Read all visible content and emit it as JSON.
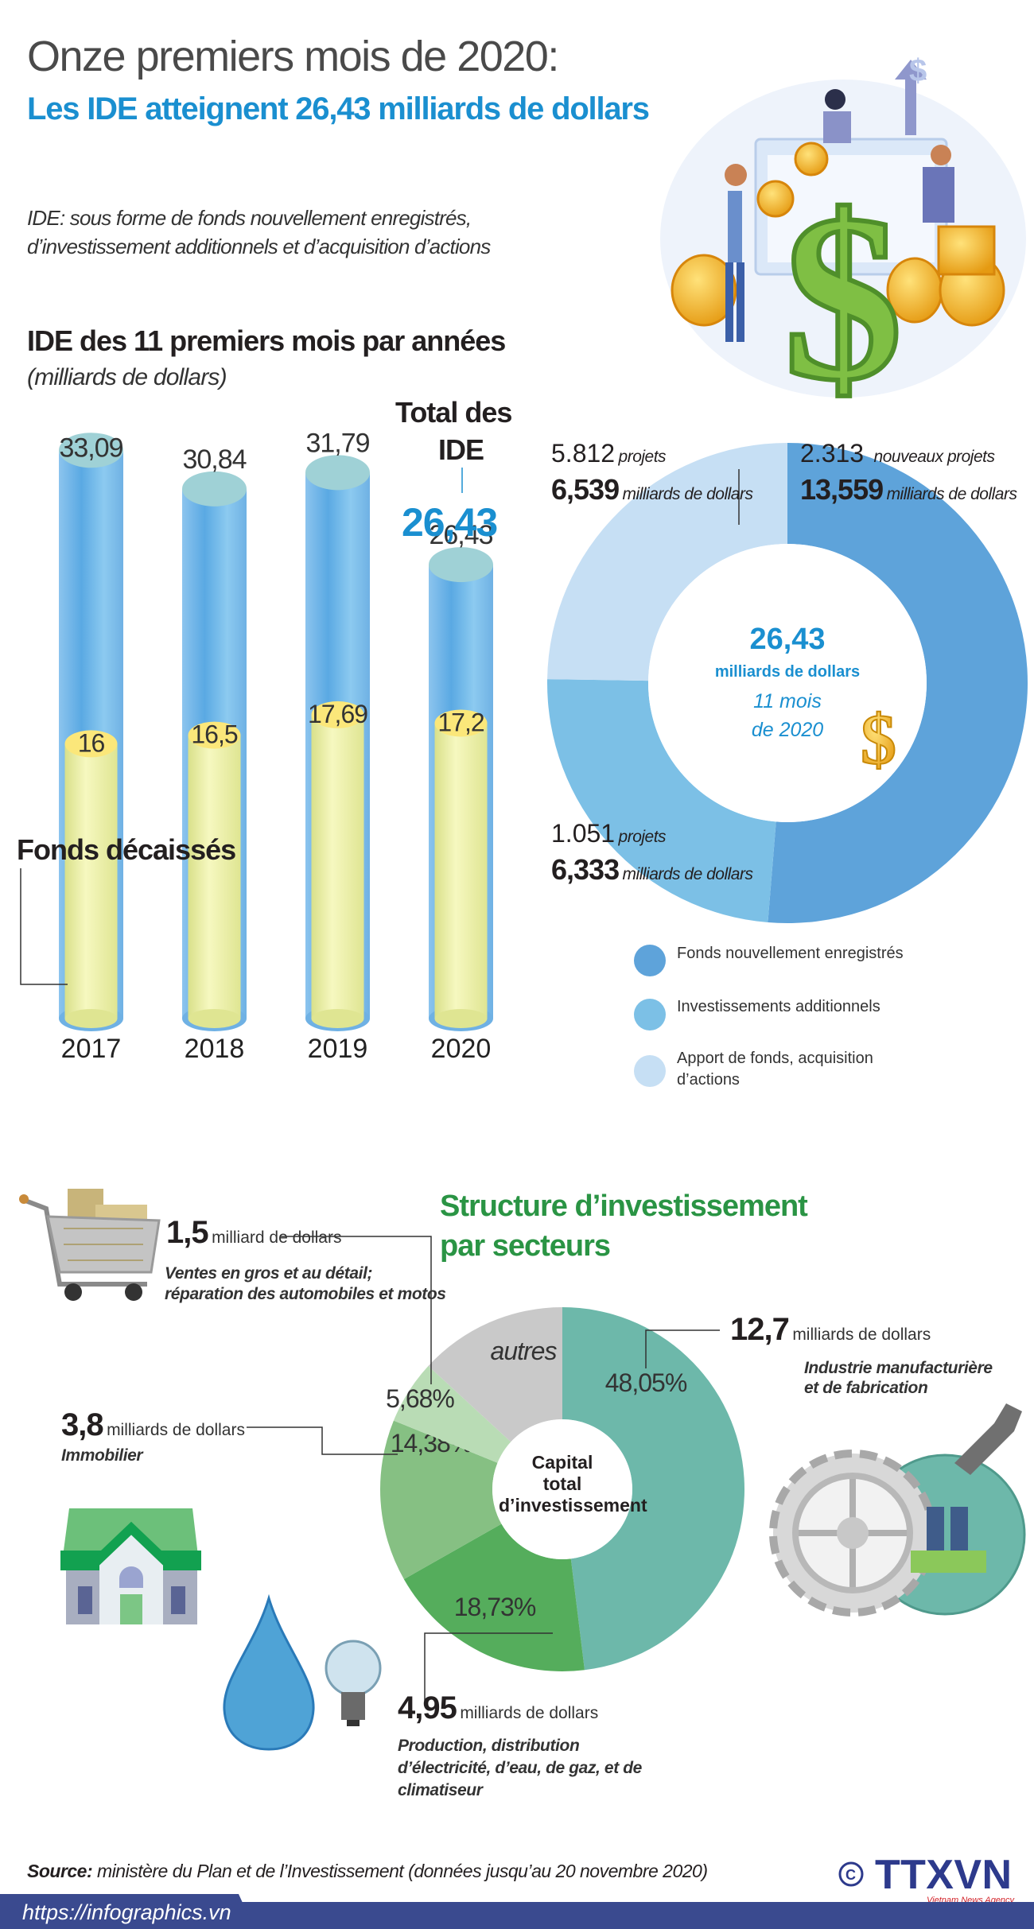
{
  "header": {
    "title": "Onze premiers mois de 2020:",
    "subtitle": "Les IDE atteignent 26,43 milliards de dollars",
    "note_line1": "IDE: sous forme de fonds nouvellement enregistrés,",
    "note_line2": "d’investissement additionnels et d’acquisition d’actions"
  },
  "bar_section": {
    "title": "IDE des 11 premiers mois par années",
    "unit": "(milliards de dollars)",
    "total_label_line1": "Total des",
    "total_label_line2": "IDE",
    "total_value": "26,43",
    "disbursed_label": "Fonds décaissés"
  },
  "donut_ide": {
    "center_value": "26,43",
    "center_unit": "milliards de dollars",
    "center_line3": "11 mois",
    "center_line4": "de 2020",
    "labels": [
      {
        "count": "2.313",
        "count_unit": "nouveaux projets",
        "amount": "13,559",
        "amount_unit": "milliards de dollars"
      },
      {
        "count": "1.051",
        "count_unit": "projets",
        "amount": "6,333",
        "amount_unit": "milliards de dollars"
      },
      {
        "count": "5.812",
        "count_unit": "projets",
        "amount": "6,539",
        "amount_unit": "milliards de dollars"
      }
    ],
    "legend": [
      {
        "label": "Fonds nouvellement enregistrés",
        "color": "#5ea3da"
      },
      {
        "label": "Investissements additionnels",
        "color": "#7cc0e6"
      },
      {
        "label_line1": "Apport de fonds, acquisition",
        "label_line2": "d’actions",
        "color": "#c6dff4"
      }
    ]
  },
  "sectors": {
    "title_line1": "Structure d’investissement",
    "title_line2": "par secteurs",
    "center_line1": "Capital",
    "center_line2": "total",
    "center_line3": "d’investissement",
    "callouts": [
      {
        "value": "12,7",
        "unit": "milliards de dollars",
        "desc_line1": "Industrie manufacturière",
        "desc_line2": "et de fabrication"
      },
      {
        "value": "4,95",
        "unit": "milliards de dollars",
        "desc_line1": "Production, distribution",
        "desc_line2": "d’électricité, d’eau, de gaz, et de",
        "desc_line3": "climatiseur"
      },
      {
        "value": "3,8",
        "unit": "milliards de dollars",
        "desc_line1": "Immobilier"
      },
      {
        "value": "1,5",
        "unit": "milliard de dollars",
        "desc_line1": "Ventes en gros et au détail;",
        "desc_line2": "réparation des automobiles et motos"
      }
    ]
  },
  "footer": {
    "source_label": "Source:",
    "source_text": "ministère du Plan et de l’Investissement (données jusqu’au 20 novembre 2020)",
    "url": "https://infographics.vn",
    "logo_text": "TTXVN",
    "logo_sub": "Vietnam News Agency",
    "copyright": "©"
  },
  "chart_data": [
    {
      "type": "bar",
      "title": "IDE des 11 premiers mois par années",
      "ylabel": "(milliards de dollars)",
      "categories": [
        "2017",
        "2018",
        "2019",
        "2020"
      ],
      "series": [
        {
          "name": "Total des IDE",
          "values": [
            33.09,
            30.84,
            31.79,
            26.43
          ],
          "labels": [
            "33,09",
            "30,84",
            "31,79",
            "26,43"
          ],
          "color": "#6fb4e6"
        },
        {
          "name": "Fonds décaissés",
          "values": [
            16,
            16.5,
            17.69,
            17.2
          ],
          "labels": [
            "16",
            "16,5",
            "17,69",
            "17,2"
          ],
          "color": "#eef2a0"
        }
      ],
      "grid": false
    },
    {
      "type": "pie",
      "variant": "donut",
      "slices": [
        {
          "name": "Fonds nouvellement enregistrés",
          "value": 13.559,
          "projects": 2313,
          "color": "#5ea3da"
        },
        {
          "name": "Investissements additionnels",
          "value": 6.333,
          "projects": 1051,
          "color": "#7cc0e6"
        },
        {
          "name": "Apport de fonds, acquisition d’actions",
          "value": 6.539,
          "projects": 5812,
          "color": "#c6dff4"
        }
      ],
      "total": 26.43,
      "legend": "bottom-right"
    },
    {
      "type": "pie",
      "variant": "donut",
      "slices": [
        {
          "name": "Industrie manufacturière et de fabrication",
          "value": 48.05,
          "label": "48,05%",
          "color": "#6db8aa"
        },
        {
          "name": "Production, distribution d’électricité, d’eau, de gaz, et de climatiseur",
          "value": 18.73,
          "label": "18,73%",
          "color": "#55ad5c"
        },
        {
          "name": "Immobilier",
          "value": 14.38,
          "label": "14,38%",
          "color": "#86c083"
        },
        {
          "name": "Ventes en gros et au détail; réparation des automobiles et motos",
          "value": 5.68,
          "label": "5,68%",
          "color": "#b9dcb5"
        },
        {
          "name": "autres",
          "value": 13.16,
          "label": "autres",
          "color": "#c9c9c9"
        }
      ]
    }
  ]
}
